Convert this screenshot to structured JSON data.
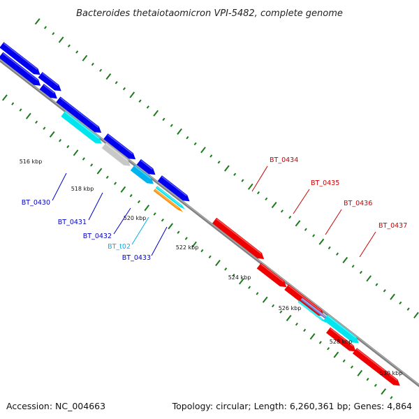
{
  "title": "Bacteroides thetaiotaomicron VPI-5482, complete genome",
  "footer": {
    "accession": "Accession: NC_004663",
    "summary": "Topology: circular; Length: 6,260,361 bp; Genes: 4,864"
  },
  "colors": {
    "forward_gene": "#0000ee",
    "reverse_gene": "#ee0000",
    "pseudo_gene": "#c8c8c8",
    "rna_gene": "#00e5ee",
    "trna_gene": "#00b2ee",
    "rrna_gene": "#ff8c00",
    "ticks": "#1a7a1a",
    "backbone": "#808080"
  },
  "tick_labels": [
    "516 kbp",
    "518 kbp",
    "520 kbp",
    "522 kbp",
    "524 kbp",
    "526 kbp",
    "528 kbp",
    "530 kbp"
  ],
  "gene_labels": [
    {
      "text": "BT_0430",
      "color": "#0000cc"
    },
    {
      "text": "BT_0431",
      "color": "#0000cc"
    },
    {
      "text": "BT_0432",
      "color": "#0000cc"
    },
    {
      "text": "BT_t02",
      "color": "#00b2ee"
    },
    {
      "text": "BT_0433",
      "color": "#0000cc"
    },
    {
      "text": "BT_0434",
      "color": "#cc0000"
    },
    {
      "text": "BT_0435",
      "color": "#cc0000"
    },
    {
      "text": "BT_0436",
      "color": "#cc0000"
    },
    {
      "text": "BT_0437",
      "color": "#cc0000"
    }
  ]
}
